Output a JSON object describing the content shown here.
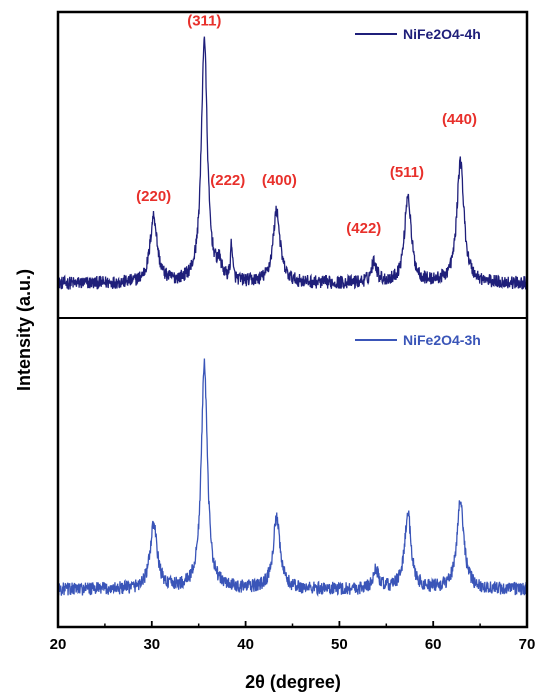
{
  "chart_data": {
    "type": "line",
    "xlabel": "2θ (degree)",
    "ylabel": "Intensity (a.u.)",
    "xlim": [
      20,
      70
    ],
    "xticks": [
      "20",
      "30",
      "40",
      "50",
      "60",
      "70"
    ],
    "panels": [
      {
        "series_name": "NiFe2O4-4h",
        "color": "#1f1f7a",
        "baseline": 0.13,
        "noise": 0.025,
        "peaks": [
          {
            "x": 30.2,
            "height": 0.25,
            "width": 0.45
          },
          {
            "x": 35.6,
            "height": 0.92,
            "width": 0.38
          },
          {
            "x": 37.2,
            "height": 0.05,
            "width": 0.3
          },
          {
            "x": 38.5,
            "height": 0.14,
            "width": 0.12
          },
          {
            "x": 43.3,
            "height": 0.27,
            "width": 0.45
          },
          {
            "x": 53.7,
            "height": 0.08,
            "width": 0.35
          },
          {
            "x": 57.3,
            "height": 0.33,
            "width": 0.42
          },
          {
            "x": 62.9,
            "height": 0.46,
            "width": 0.45
          }
        ],
        "peak_labels": [
          {
            "text": "(220)",
            "x": 30.2,
            "y": 0.44
          },
          {
            "text": "(311)",
            "x": 35.6,
            "y": 1.1
          },
          {
            "text": "(222)",
            "x": 38.1,
            "y": 0.5
          },
          {
            "text": "(400)",
            "x": 43.6,
            "y": 0.5
          },
          {
            "text": "(422)",
            "x": 52.6,
            "y": 0.32
          },
          {
            "text": "(511)",
            "x": 57.2,
            "y": 0.53
          },
          {
            "text": "(440)",
            "x": 62.8,
            "y": 0.73
          }
        ]
      },
      {
        "series_name": "NiFe2O4-3h",
        "color": "#3a55b8",
        "baseline": 0.14,
        "noise": 0.025,
        "peaks": [
          {
            "x": 30.2,
            "height": 0.24,
            "width": 0.45
          },
          {
            "x": 35.6,
            "height": 0.85,
            "width": 0.38
          },
          {
            "x": 43.3,
            "height": 0.26,
            "width": 0.45
          },
          {
            "x": 53.9,
            "height": 0.07,
            "width": 0.35
          },
          {
            "x": 57.3,
            "height": 0.28,
            "width": 0.42
          },
          {
            "x": 62.9,
            "height": 0.33,
            "width": 0.45
          }
        ],
        "peak_labels": []
      }
    ],
    "label_color": "#e8302b"
  }
}
